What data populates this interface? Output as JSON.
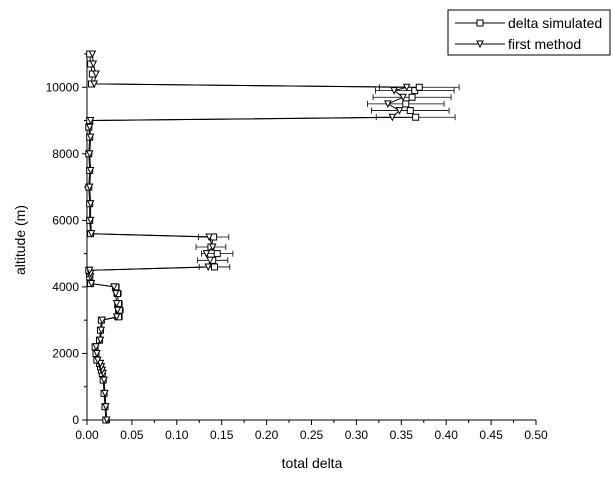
{
  "chart_data": {
    "type": "line",
    "xlabel": "total delta",
    "ylabel": "altitude (m)",
    "xlim": [
      0,
      0.5
    ],
    "ylim": [
      0,
      11000
    ],
    "x_ticks": [
      "0.00",
      "0.05",
      "0.10",
      "0.15",
      "0.20",
      "0.25",
      "0.30",
      "0.35",
      "0.40",
      "0.45",
      "0.50"
    ],
    "y_ticks": [
      "0",
      "2000",
      "4000",
      "6000",
      "8000",
      "10000"
    ],
    "grid": false,
    "legend_position": "top-right",
    "series": [
      {
        "name": "delta simulated",
        "marker": "square",
        "x": [
          0.021,
          0.02,
          0.019,
          0.018,
          0.017,
          0.016,
          0.015,
          0.014,
          0.011,
          0.01,
          0.009,
          0.014,
          0.015,
          0.016,
          0.035,
          0.036,
          0.035,
          0.034,
          0.032,
          0.004,
          0.003,
          0.003,
          0.002,
          0.142,
          0.14,
          0.145,
          0.138,
          0.141,
          0.004,
          0.003,
          0.003,
          0.002,
          0.003,
          0.002,
          0.003,
          0.002,
          0.003,
          0.366,
          0.36,
          0.355,
          0.362,
          0.365,
          0.37,
          0.005,
          0.006,
          0.004,
          0.003
        ],
        "y": [
          0,
          400,
          800,
          1200,
          1400,
          1500,
          1600,
          1700,
          1800,
          2000,
          2200,
          2400,
          2700,
          3000,
          3100,
          3300,
          3500,
          3800,
          4000,
          4100,
          4300,
          4400,
          4500,
          4600,
          4800,
          5000,
          5200,
          5500,
          5600,
          6000,
          6500,
          7000,
          7500,
          8000,
          8500,
          8800,
          9000,
          9100,
          9300,
          9500,
          9700,
          9900,
          10000,
          10100,
          10400,
          10700,
          11000
        ]
      },
      {
        "name": "first method",
        "marker": "triangle-down",
        "x": [
          0.022,
          0.021,
          0.02,
          0.019,
          0.018,
          0.017,
          0.016,
          0.015,
          0.012,
          0.011,
          0.01,
          0.015,
          0.016,
          0.017,
          0.033,
          0.034,
          0.033,
          0.032,
          0.03,
          0.005,
          0.004,
          0.004,
          0.003,
          0.135,
          0.137,
          0.133,
          0.14,
          0.136,
          0.005,
          0.004,
          0.004,
          0.003,
          0.004,
          0.003,
          0.004,
          0.003,
          0.004,
          0.34,
          0.348,
          0.335,
          0.352,
          0.342,
          0.356,
          0.008,
          0.01,
          0.007,
          0.006
        ],
        "y": [
          0,
          400,
          800,
          1200,
          1400,
          1500,
          1600,
          1700,
          1800,
          2000,
          2200,
          2400,
          2700,
          3000,
          3100,
          3300,
          3500,
          3800,
          4000,
          4100,
          4300,
          4400,
          4500,
          4600,
          4800,
          5000,
          5200,
          5500,
          5600,
          6000,
          6500,
          7000,
          7500,
          8000,
          8500,
          8800,
          9000,
          9100,
          9300,
          9500,
          9700,
          9900,
          10000,
          10100,
          10400,
          10700,
          11000
        ]
      }
    ]
  }
}
